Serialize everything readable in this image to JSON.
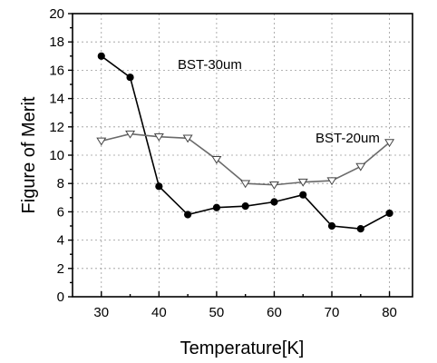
{
  "chart_data": {
    "type": "line",
    "title": "",
    "xlabel": "Temperature[K]",
    "ylabel": "Figure of Merit",
    "xlim": [
      25,
      84
    ],
    "ylim": [
      0,
      20
    ],
    "xticks": [
      30,
      40,
      50,
      60,
      70,
      80
    ],
    "yticks": [
      0,
      2,
      4,
      6,
      8,
      10,
      12,
      14,
      16,
      18,
      20
    ],
    "grid": true,
    "legend": "none",
    "series": [
      {
        "name": "BST-30um",
        "marker": "filled-circle",
        "color": "#000000",
        "x": [
          30,
          35,
          40,
          45,
          50,
          55,
          60,
          65,
          70,
          75,
          80
        ],
        "y": [
          17.0,
          15.5,
          7.8,
          5.8,
          6.3,
          6.4,
          6.7,
          7.2,
          5.0,
          4.8,
          5.9
        ]
      },
      {
        "name": "BST-20um",
        "marker": "open-triangle-down",
        "color": "#555555",
        "x": [
          30,
          35,
          40,
          45,
          50,
          55,
          60,
          65,
          70,
          75,
          80
        ],
        "y": [
          11.0,
          11.5,
          11.3,
          11.2,
          9.7,
          8.0,
          7.9,
          8.1,
          8.2,
          9.2,
          10.9
        ]
      }
    ]
  }
}
